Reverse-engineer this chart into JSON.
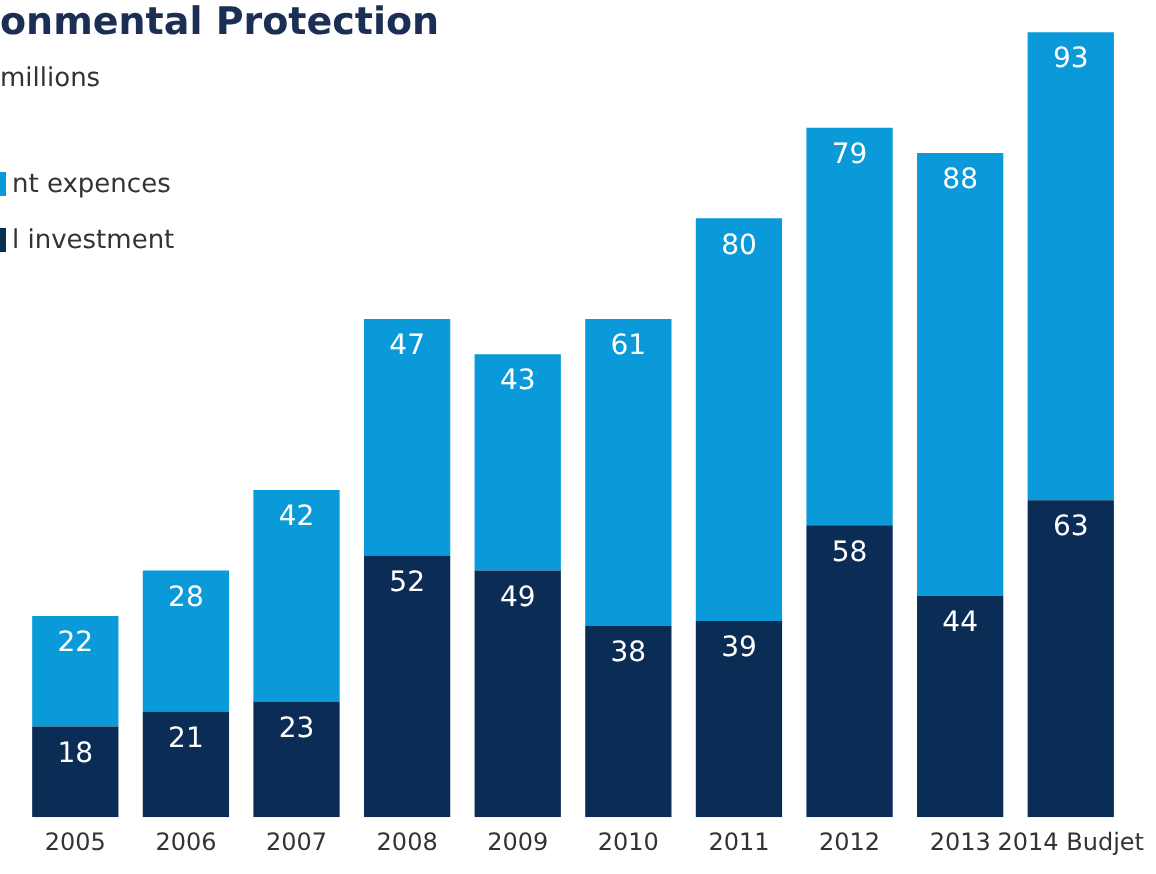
{
  "chart_data": {
    "type": "bar",
    "title": "onmental Protection",
    "subtitle": "millions",
    "stacked": true,
    "data_labels": true,
    "legend": "top left",
    "grid": false,
    "categories": [
      "2005",
      "2006",
      "2007",
      "2008",
      "2009",
      "2010",
      "2011",
      "2012",
      "2013",
      "2014 Budjet"
    ],
    "series": [
      {
        "name": "l investment",
        "color": "#0b2c55",
        "values": [
          18,
          21,
          23,
          52,
          49,
          38,
          39,
          58,
          44,
          63
        ]
      },
      {
        "name": "nt expences",
        "color": "#0a9ad9",
        "values": [
          22,
          28,
          42,
          47,
          43,
          61,
          80,
          79,
          88,
          93
        ]
      }
    ]
  }
}
